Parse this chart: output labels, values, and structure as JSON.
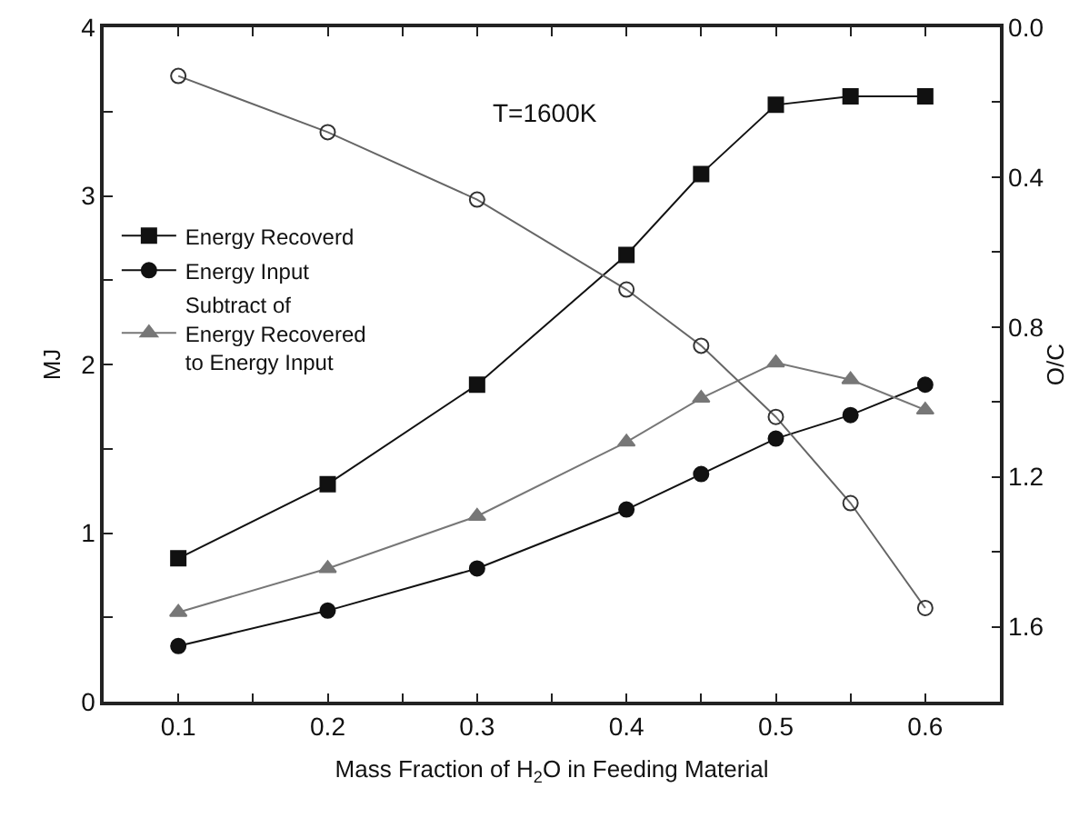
{
  "chart_data": {
    "type": "line",
    "xlabel": "Mass Fraction of H$_{2}$O in Feeding Material",
    "ylabel": "MJ",
    "y2label": "O/C",
    "annotations": [
      "T=1600K"
    ],
    "x": [
      0.1,
      0.2,
      0.3,
      0.4,
      0.45,
      0.5,
      0.55,
      0.6
    ],
    "series": [
      {
        "name": "Energy Recoverd",
        "color": "#111111",
        "marker": "square",
        "values": [
          0.85,
          1.29,
          1.88,
          2.65,
          3.13,
          3.54,
          3.59,
          3.59
        ]
      },
      {
        "name": "Energy Input",
        "color": "#111111",
        "marker": "circle",
        "values": [
          0.33,
          0.54,
          0.79,
          1.14,
          1.35,
          1.56,
          1.7,
          1.88
        ]
      },
      {
        "name": "Subtract of Energy Recovered to Energy Input",
        "color": "#777777",
        "marker": "triangle",
        "values": [
          0.53,
          0.79,
          1.1,
          1.54,
          1.8,
          2.01,
          1.91,
          1.73
        ]
      },
      {
        "color": "#666666",
        "marker": "circle",
        "axis": "y2",
        "values": [
          0.13,
          0.28,
          0.46,
          0.7,
          0.85,
          1.04,
          1.27,
          1.55
        ]
      }
    ],
    "xlim": [
      0.05,
      0.65
    ],
    "xticks": [
      0.1,
      {
        "value": 0.15,
        "label": null
      },
      0.2,
      {
        "value": 0.25,
        "label": null
      },
      0.3,
      {
        "value": 0.35,
        "label": null
      },
      0.4,
      {
        "value": 0.45,
        "label": null
      },
      0.5,
      {
        "value": 0.55,
        "label": null
      },
      0.6
    ],
    "ylim": [
      0,
      4
    ],
    "yticks": [
      0,
      {
        "value": 0.5,
        "label": null
      },
      1,
      {
        "value": 1.5,
        "label": null
      },
      2,
      {
        "value": 2.5,
        "label": null
      },
      3,
      {
        "value": 3.5,
        "label": null
      },
      4
    ],
    "y2lim": [
      1.8,
      0
    ],
    "y2ticks": [
      {
        "value": 0,
        "label": "0.0"
      },
      {
        "value": 0.2,
        "label": null
      },
      0.4,
      {
        "value": 0.6,
        "label": null
      },
      0.8,
      {
        "value": 1.0,
        "label": null
      },
      1.2,
      {
        "value": 1.4,
        "label": null
      },
      1.6
    ],
    "grid": false,
    "legend": "left",
    "line_style": "solid"
  }
}
